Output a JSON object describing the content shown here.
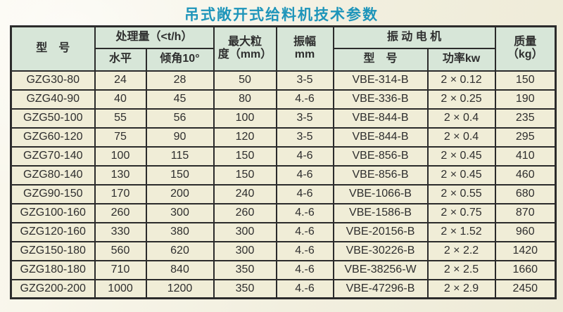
{
  "title": "吊式敞开式给料机技术参数",
  "colors": {
    "title_text": "#1e95ba",
    "header_bg": "#d7e6d8",
    "cell_bg": "#f0edd7",
    "border": "#2b2b2b",
    "text": "#2e2e2e",
    "page_bg": "#f2efdf",
    "page_bg_light": "#faf8ee"
  },
  "table": {
    "headers": {
      "model": "型　号",
      "capacity_group": "处理量（<t/h）",
      "capacity_horizontal": "水平",
      "capacity_incline": "倾角10°",
      "max_particle_line1": "最大粒",
      "max_particle_line2": "度（mm）",
      "amplitude_line1": "振幅",
      "amplitude_line2": "mm",
      "motor_group": "振 动 电 机",
      "motor_model": "型　号",
      "motor_power": "功率kw",
      "mass_line1": "质量",
      "mass_line2": "（kg）"
    },
    "rows": [
      [
        "GZG30-80",
        "24",
        "28",
        "50",
        "3-5",
        "VBE-314-B",
        "2 × 0.12",
        "150"
      ],
      [
        "GZG40-90",
        "40",
        "45",
        "80",
        "4.-6",
        "VBE-336-B",
        "2 × 0.25",
        "190"
      ],
      [
        "GZG50-100",
        "55",
        "56",
        "100",
        "3-5",
        "VBE-844-B",
        "2 × 0.4",
        "235"
      ],
      [
        "GZG60-120",
        "75",
        "90",
        "120",
        "3-5",
        "VBE-844-B",
        "2 × 0.4",
        "295"
      ],
      [
        "GZG70-140",
        "100",
        "115",
        "150",
        "4-6",
        "VBE-856-B",
        "2 × 0.45",
        "410"
      ],
      [
        "GZG80-140",
        "130",
        "150",
        "150",
        "4-6",
        "VBE-856-B",
        "2 × 0.45",
        "460"
      ],
      [
        "GZG90-150",
        "170",
        "200",
        "240",
        "4-6",
        "VBE-1066-B",
        "2 × 0.55",
        "680"
      ],
      [
        "GZG100-160",
        "260",
        "300",
        "260",
        "4.-6",
        "VBE-1586-B",
        "2 × 0.75",
        "870"
      ],
      [
        "GZG120-160",
        "330",
        "380",
        "300",
        "4.-6",
        "VBE-20156-B",
        "2 × 1.52",
        "960"
      ],
      [
        "GZG150-180",
        "560",
        "620",
        "300",
        "4.-6",
        "VBE-30226-B",
        "2 × 2.2",
        "1420"
      ],
      [
        "GZG180-180",
        "710",
        "840",
        "350",
        "4.-6",
        "VBE-38256-W",
        "2 × 2.5",
        "1660"
      ],
      [
        "GZG200-200",
        "1000",
        "1200",
        "350",
        "4.-6",
        "VBE-47296-B",
        "2 × 2.9",
        "2450"
      ]
    ]
  }
}
